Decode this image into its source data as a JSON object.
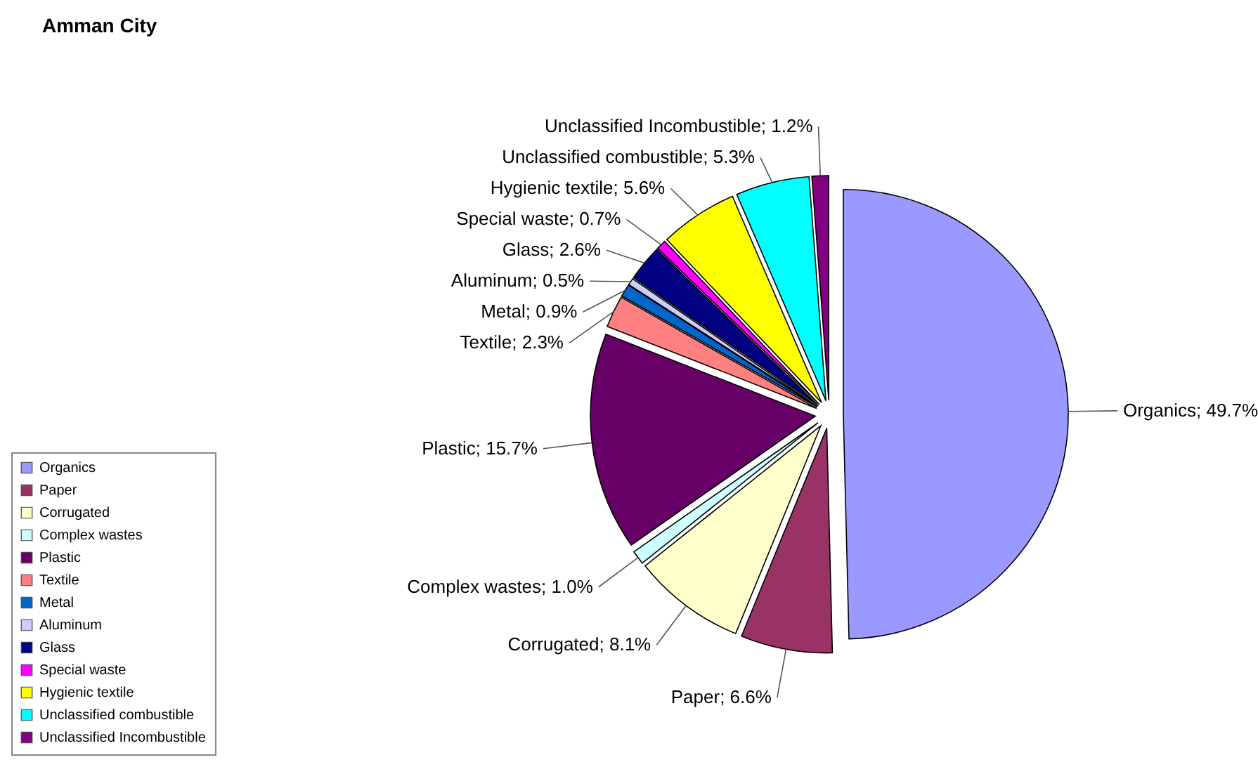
{
  "chart_data": {
    "type": "pie",
    "title": "Amman City",
    "categories": [
      "Organics",
      "Paper",
      "Corrugated",
      "Complex wastes",
      "Plastic",
      "Textile",
      "Metal",
      "Aluminum",
      "Glass",
      "Special waste",
      "Hygienic textile",
      "Unclassified combustible",
      "Unclassified Incombustible"
    ],
    "values": [
      49.7,
      6.6,
      8.1,
      1.0,
      15.7,
      2.3,
      0.9,
      0.5,
      2.6,
      0.7,
      5.6,
      5.3,
      1.2
    ],
    "value_labels": [
      "Organics; 49.7%",
      "Paper; 6.6%",
      "Corrugated; 8.1%",
      "Complex wastes; 1.0%",
      "Plastic; 15.7%",
      "Textile; 2.3%",
      "Metal; 0.9%",
      "Aluminum; 0.5%",
      "Glass; 2.6%",
      "Special waste; 0.7%",
      "Hygienic textile; 5.6%",
      "Unclassified combustible; 5.3%",
      "Unclassified Incombustible; 1.2%"
    ],
    "colors": [
      "#9999ff",
      "#993366",
      "#ffffcc",
      "#ccffff",
      "#660066",
      "#ff8080",
      "#0066cc",
      "#ccccff",
      "#000080",
      "#ff00ff",
      "#ffff00",
      "#00ffff",
      "#800080"
    ],
    "legend": "bottom left"
  }
}
